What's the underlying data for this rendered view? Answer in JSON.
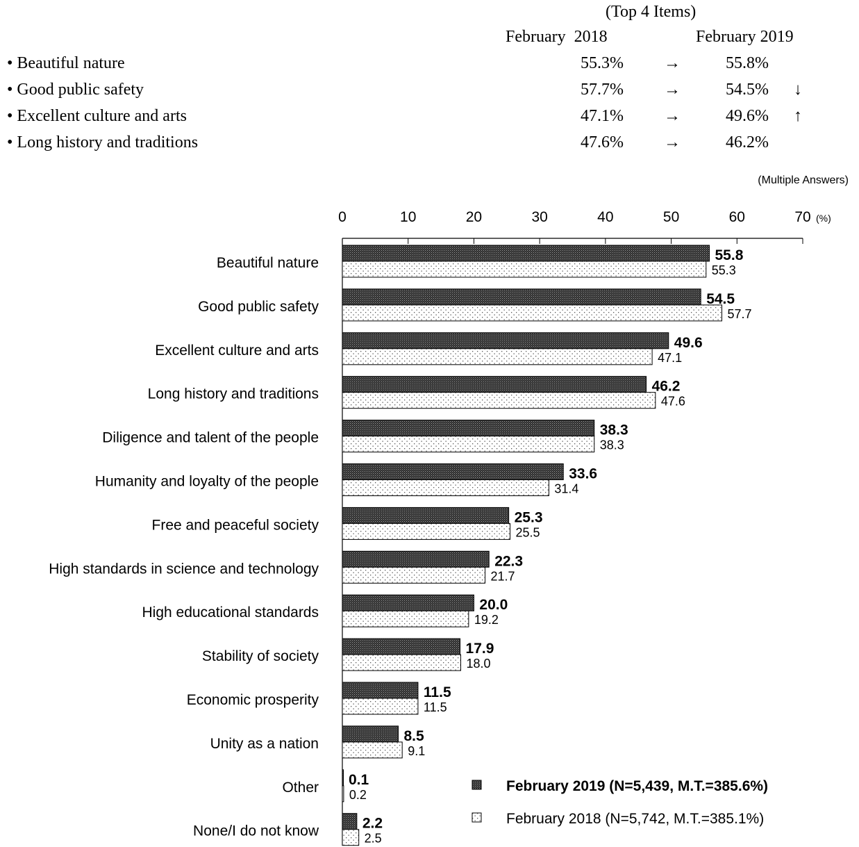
{
  "summary": {
    "header": "(Top 4 Items)",
    "col_2018_label": "February  2018",
    "col_2019_label": "February 2019",
    "arrow": "→",
    "rows": [
      {
        "label": "• Beautiful nature",
        "v2018": "55.3%",
        "v2019": "55.8%",
        "trend": ""
      },
      {
        "label": "• Good public safety",
        "v2018": "57.7%",
        "v2019": "54.5%",
        "trend": "↓"
      },
      {
        "label": "• Excellent culture and arts",
        "v2018": "47.1%",
        "v2019": "49.6%",
        "trend": "↑"
      },
      {
        "label": "• Long history and traditions",
        "v2018": "47.6%",
        "v2019": "46.2%",
        "trend": ""
      }
    ]
  },
  "chart_data": {
    "type": "bar",
    "orientation": "horizontal",
    "note": "(Multiple Answers)",
    "unit": "(%)",
    "xlim": [
      0,
      70
    ],
    "ticks": [
      0,
      10,
      20,
      30,
      40,
      50,
      60,
      70
    ],
    "categories": [
      "Beautiful nature",
      "Good public safety",
      "Excellent culture and arts",
      "Long history and traditions",
      "Diligence and talent of the people",
      "Humanity and loyalty of the people",
      "Free and peaceful society",
      "High standards in science and technology",
      "High educational standards",
      "Stability of society",
      "Economic prosperity",
      "Unity as a nation",
      "Other",
      "None/I do not know"
    ],
    "series": [
      {
        "name": "February 2019 (N=5,439, M.T.=385.6%)",
        "values": [
          55.8,
          54.5,
          49.6,
          46.2,
          38.3,
          33.6,
          25.3,
          22.3,
          20.0,
          17.9,
          11.5,
          8.5,
          0.1,
          2.2
        ],
        "labels": [
          "55.8",
          "54.5",
          "49.6",
          "46.2",
          "38.3",
          "33.6",
          "25.3",
          "22.3",
          "20.0",
          "17.9",
          "11.5",
          "8.5",
          "0.1",
          "2.2"
        ]
      },
      {
        "name": "February  2018 (N=5,742, M.T.=385.1%)",
        "values": [
          55.3,
          57.7,
          47.1,
          47.6,
          38.3,
          31.4,
          25.5,
          21.7,
          19.2,
          18.0,
          11.5,
          9.1,
          0.2,
          2.5
        ],
        "labels": [
          "55.3",
          "57.7",
          "47.1",
          "47.6",
          "38.3",
          "31.4",
          "25.5",
          "21.7",
          "19.2",
          "18.0",
          "11.5",
          "9.1",
          "0.2",
          "2.5"
        ]
      }
    ],
    "legend_position": "bottom-right",
    "colors": {
      "series2019": "#3a3a3a",
      "series2018": "#ffffff",
      "outline": "#000000"
    }
  }
}
